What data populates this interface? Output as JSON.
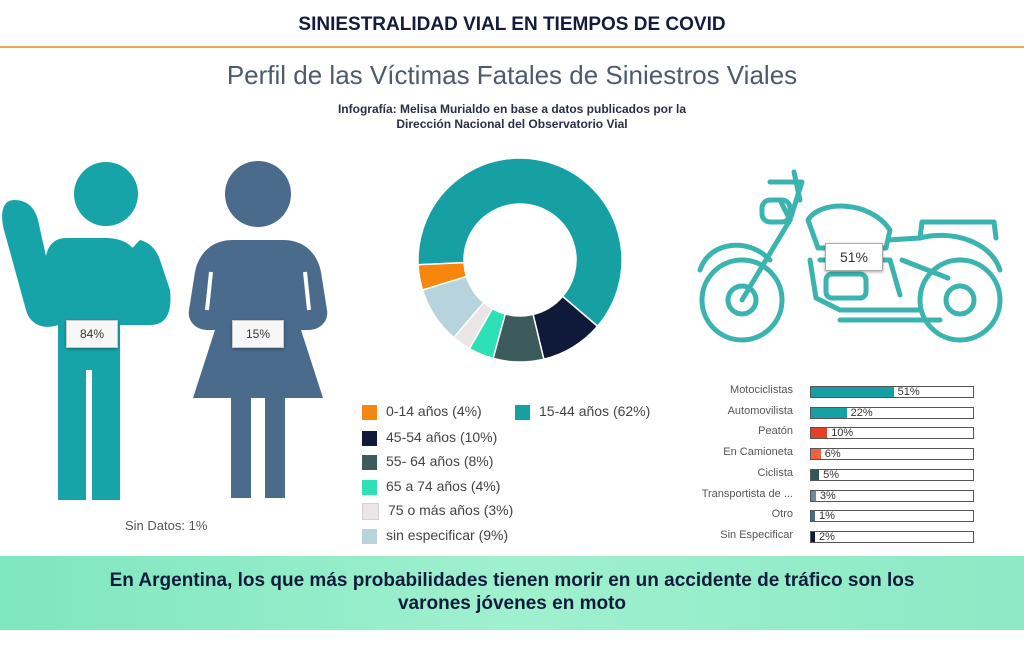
{
  "header": {
    "title": "SINIESTRALIDAD VIAL EN TIEMPOS DE COVID"
  },
  "main": {
    "title": "Perfil de las Víctimas Fatales de Siniestros Viales",
    "subtitle_line1": "Infografía: Melisa Murialdo en base a datos publicados por la",
    "subtitle_line2": "Dirección Nacional del Observatorio Vial"
  },
  "gender": {
    "male_label": "84%",
    "female_label": "15%",
    "no_data_label": "Sin Datos: 1%",
    "male_color": "#17a4a8",
    "female_color": "#4a6b8c"
  },
  "moto": {
    "label": "51%",
    "color": "#3bb4b0"
  },
  "footer": {
    "line1": "En Argentina, los que más probabilidades tienen morir en un accidente de tráfico son los",
    "line2": "varones jóvenes en moto",
    "color": "#8ceac6"
  },
  "chart_data": [
    {
      "type": "bar",
      "categories": [
        "Hombres",
        "Mujeres",
        "Sin Datos"
      ],
      "values": [
        84,
        15,
        1
      ],
      "unit": "%"
    },
    {
      "type": "pie",
      "donut": true,
      "slices": [
        {
          "label": "0-14 años (4%)",
          "value": 4,
          "color": "#f7860f"
        },
        {
          "label": "15-44 años (62%)",
          "value": 62,
          "color": "#17a0a4"
        },
        {
          "label": "45-54 años (10%)",
          "value": 10,
          "color": "#0f1a3a"
        },
        {
          "label": "55- 64 años (8%)",
          "value": 8,
          "color": "#3d5a5c"
        },
        {
          "label": "65 a 74 años (4%)",
          "value": 4,
          "color": "#2ee0b5"
        },
        {
          "label": "75 o más años (3%)",
          "value": 3,
          "color": "#ebe5e7"
        },
        {
          "label": "sin especificar (9%)",
          "value": 9,
          "color": "#b7d4dd"
        }
      ]
    },
    {
      "type": "bar",
      "orientation": "horizontal",
      "xlim": [
        0,
        100
      ],
      "bars": [
        {
          "label": "Motociclistas",
          "value": 51,
          "value_label": "51%",
          "color": "#17a0a4"
        },
        {
          "label": "Automovilista",
          "value": 22,
          "value_label": "22%",
          "color": "#17a0a4"
        },
        {
          "label": "Peatón",
          "value": 10,
          "value_label": "10%",
          "color": "#e2402a"
        },
        {
          "label": "En Camioneta",
          "value": 6,
          "value_label": "6%",
          "color": "#f0623c"
        },
        {
          "label": "Ciclista",
          "value": 5,
          "value_label": "5%",
          "color": "#355556"
        },
        {
          "label": "Transportista de ...",
          "value": 3,
          "value_label": "3%",
          "color": "#6e8aa0"
        },
        {
          "label": "Otro",
          "value": 1,
          "value_label": "1%",
          "color": "#4a6b8c"
        },
        {
          "label": "Sin Especificar",
          "value": 2,
          "value_label": "2%",
          "color": "#0f1a3a"
        }
      ]
    }
  ]
}
